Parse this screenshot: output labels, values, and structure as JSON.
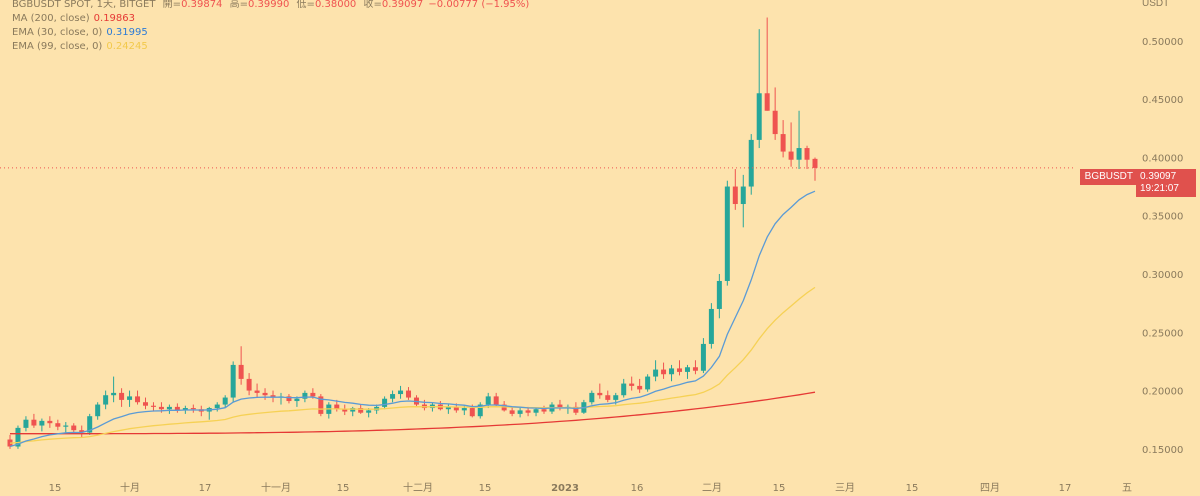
{
  "legend": {
    "symbol": "BGBUSDT SPOT, 1天, BITGET",
    "open_label": "開=",
    "open": "0.39874",
    "high_label": "高=",
    "high": "0.39990",
    "low_label": "低=",
    "low": "0.38000",
    "close_label": "收=",
    "close": "0.39097",
    "change": "−0.00777 (−1.95%)",
    "ma200_label": "MA (200, close)",
    "ma200_value": "0.19863",
    "ema30_label": "EMA (30, close, 0)",
    "ema30_value": "0.31995",
    "ema99_label": "EMA (99, close, 0)",
    "ema99_value": "0.24245"
  },
  "axis": {
    "currency": "USDT",
    "symbol_tag": "BGBUSDT",
    "last_price": "0.39097",
    "countdown": "19:21:07"
  },
  "colors": {
    "background": "#fde3ad",
    "up": "#26a69a",
    "down": "#ef5350",
    "ema30": "#5b9bd5",
    "ema99": "#f6d155",
    "ma200": "#e53935"
  },
  "chart_data": {
    "type": "candlestick",
    "ylim": [
      0.125,
      0.535
    ],
    "y_ticks": [
      "0.50000",
      "0.45000",
      "0.40000",
      "0.35000",
      "0.30000",
      "0.25000",
      "0.20000",
      "0.15000"
    ],
    "x_ticks": [
      "15",
      "十月",
      "17",
      "十一月",
      "15",
      "十二月",
      "15",
      "2023",
      "16",
      "二月",
      "15",
      "三月",
      "15",
      "四月",
      "17",
      "五"
    ],
    "candles": [
      [
        0.158,
        0.162,
        0.15,
        0.152
      ],
      [
        0.152,
        0.17,
        0.15,
        0.168
      ],
      [
        0.168,
        0.178,
        0.165,
        0.175
      ],
      [
        0.175,
        0.18,
        0.168,
        0.17
      ],
      [
        0.17,
        0.176,
        0.165,
        0.174
      ],
      [
        0.174,
        0.178,
        0.168,
        0.172
      ],
      [
        0.172,
        0.175,
        0.166,
        0.169
      ],
      [
        0.169,
        0.173,
        0.164,
        0.17
      ],
      [
        0.17,
        0.172,
        0.163,
        0.166
      ],
      [
        0.166,
        0.17,
        0.16,
        0.164
      ],
      [
        0.164,
        0.18,
        0.162,
        0.178
      ],
      [
        0.178,
        0.19,
        0.175,
        0.188
      ],
      [
        0.188,
        0.2,
        0.184,
        0.196
      ],
      [
        0.196,
        0.212,
        0.19,
        0.198
      ],
      [
        0.198,
        0.202,
        0.186,
        0.192
      ],
      [
        0.192,
        0.2,
        0.186,
        0.195
      ],
      [
        0.195,
        0.2,
        0.188,
        0.19
      ],
      [
        0.19,
        0.194,
        0.184,
        0.187
      ],
      [
        0.187,
        0.19,
        0.182,
        0.186
      ],
      [
        0.186,
        0.19,
        0.181,
        0.184
      ],
      [
        0.184,
        0.188,
        0.18,
        0.186
      ],
      [
        0.186,
        0.189,
        0.181,
        0.183
      ],
      [
        0.183,
        0.187,
        0.18,
        0.185
      ],
      [
        0.185,
        0.188,
        0.181,
        0.184
      ],
      [
        0.184,
        0.187,
        0.178,
        0.182
      ],
      [
        0.182,
        0.186,
        0.175,
        0.185
      ],
      [
        0.185,
        0.19,
        0.182,
        0.188
      ],
      [
        0.188,
        0.196,
        0.185,
        0.194
      ],
      [
        0.194,
        0.225,
        0.19,
        0.222
      ],
      [
        0.222,
        0.238,
        0.205,
        0.21
      ],
      [
        0.21,
        0.215,
        0.196,
        0.2
      ],
      [
        0.2,
        0.206,
        0.194,
        0.198
      ],
      [
        0.198,
        0.202,
        0.192,
        0.196
      ],
      [
        0.196,
        0.2,
        0.19,
        0.194
      ],
      [
        0.194,
        0.198,
        0.188,
        0.195
      ],
      [
        0.195,
        0.197,
        0.189,
        0.191
      ],
      [
        0.191,
        0.195,
        0.186,
        0.193
      ],
      [
        0.193,
        0.2,
        0.19,
        0.198
      ],
      [
        0.198,
        0.202,
        0.193,
        0.195
      ],
      [
        0.195,
        0.197,
        0.178,
        0.18
      ],
      [
        0.18,
        0.19,
        0.176,
        0.188
      ],
      [
        0.188,
        0.192,
        0.182,
        0.184
      ],
      [
        0.184,
        0.188,
        0.179,
        0.182
      ],
      [
        0.182,
        0.186,
        0.178,
        0.185
      ],
      [
        0.185,
        0.188,
        0.18,
        0.181
      ],
      [
        0.181,
        0.185,
        0.177,
        0.183
      ],
      [
        0.183,
        0.188,
        0.18,
        0.186
      ],
      [
        0.186,
        0.195,
        0.184,
        0.193
      ],
      [
        0.193,
        0.2,
        0.19,
        0.197
      ],
      [
        0.197,
        0.204,
        0.193,
        0.2
      ],
      [
        0.2,
        0.203,
        0.192,
        0.194
      ],
      [
        0.194,
        0.196,
        0.186,
        0.188
      ],
      [
        0.188,
        0.192,
        0.183,
        0.185
      ],
      [
        0.185,
        0.19,
        0.182,
        0.188
      ],
      [
        0.188,
        0.191,
        0.183,
        0.184
      ],
      [
        0.184,
        0.188,
        0.18,
        0.186
      ],
      [
        0.186,
        0.189,
        0.181,
        0.183
      ],
      [
        0.183,
        0.187,
        0.179,
        0.185
      ],
      [
        0.185,
        0.188,
        0.177,
        0.178
      ],
      [
        0.178,
        0.19,
        0.176,
        0.188
      ],
      [
        0.188,
        0.198,
        0.185,
        0.195
      ],
      [
        0.195,
        0.198,
        0.186,
        0.188
      ],
      [
        0.188,
        0.191,
        0.182,
        0.183
      ],
      [
        0.183,
        0.186,
        0.178,
        0.18
      ],
      [
        0.18,
        0.185,
        0.177,
        0.183
      ],
      [
        0.183,
        0.186,
        0.178,
        0.181
      ],
      [
        0.181,
        0.185,
        0.178,
        0.184
      ],
      [
        0.184,
        0.187,
        0.18,
        0.182
      ],
      [
        0.182,
        0.19,
        0.18,
        0.188
      ],
      [
        0.188,
        0.192,
        0.183,
        0.185
      ],
      [
        0.185,
        0.188,
        0.18,
        0.186
      ],
      [
        0.186,
        0.19,
        0.179,
        0.181
      ],
      [
        0.181,
        0.192,
        0.18,
        0.19
      ],
      [
        0.19,
        0.2,
        0.188,
        0.198
      ],
      [
        0.198,
        0.206,
        0.193,
        0.196
      ],
      [
        0.196,
        0.2,
        0.19,
        0.192
      ],
      [
        0.192,
        0.198,
        0.188,
        0.196
      ],
      [
        0.196,
        0.21,
        0.194,
        0.206
      ],
      [
        0.206,
        0.212,
        0.2,
        0.204
      ],
      [
        0.204,
        0.21,
        0.198,
        0.201
      ],
      [
        0.201,
        0.214,
        0.199,
        0.212
      ],
      [
        0.212,
        0.226,
        0.208,
        0.218
      ],
      [
        0.218,
        0.224,
        0.21,
        0.214
      ],
      [
        0.214,
        0.222,
        0.208,
        0.219
      ],
      [
        0.219,
        0.226,
        0.213,
        0.216
      ],
      [
        0.216,
        0.222,
        0.21,
        0.22
      ],
      [
        0.22,
        0.226,
        0.214,
        0.217
      ],
      [
        0.217,
        0.245,
        0.215,
        0.24
      ],
      [
        0.24,
        0.275,
        0.236,
        0.27
      ],
      [
        0.27,
        0.3,
        0.262,
        0.294
      ],
      [
        0.294,
        0.38,
        0.29,
        0.375
      ],
      [
        0.375,
        0.39,
        0.355,
        0.36
      ],
      [
        0.36,
        0.385,
        0.34,
        0.375
      ],
      [
        0.375,
        0.42,
        0.368,
        0.415
      ],
      [
        0.415,
        0.51,
        0.408,
        0.455
      ],
      [
        0.455,
        0.52,
        0.44,
        0.44
      ],
      [
        0.44,
        0.46,
        0.415,
        0.42
      ],
      [
        0.42,
        0.432,
        0.4,
        0.405
      ],
      [
        0.405,
        0.43,
        0.392,
        0.398
      ],
      [
        0.398,
        0.44,
        0.39,
        0.408
      ],
      [
        0.408,
        0.41,
        0.39,
        0.398
      ],
      [
        0.39874,
        0.3999,
        0.38,
        0.39097
      ]
    ],
    "series": [
      {
        "name": "EMA (30, close, 0)"
      },
      {
        "name": "EMA (99, close, 0)"
      },
      {
        "name": "MA (200, close)"
      }
    ],
    "grid": false,
    "legend_position": "top-left"
  }
}
